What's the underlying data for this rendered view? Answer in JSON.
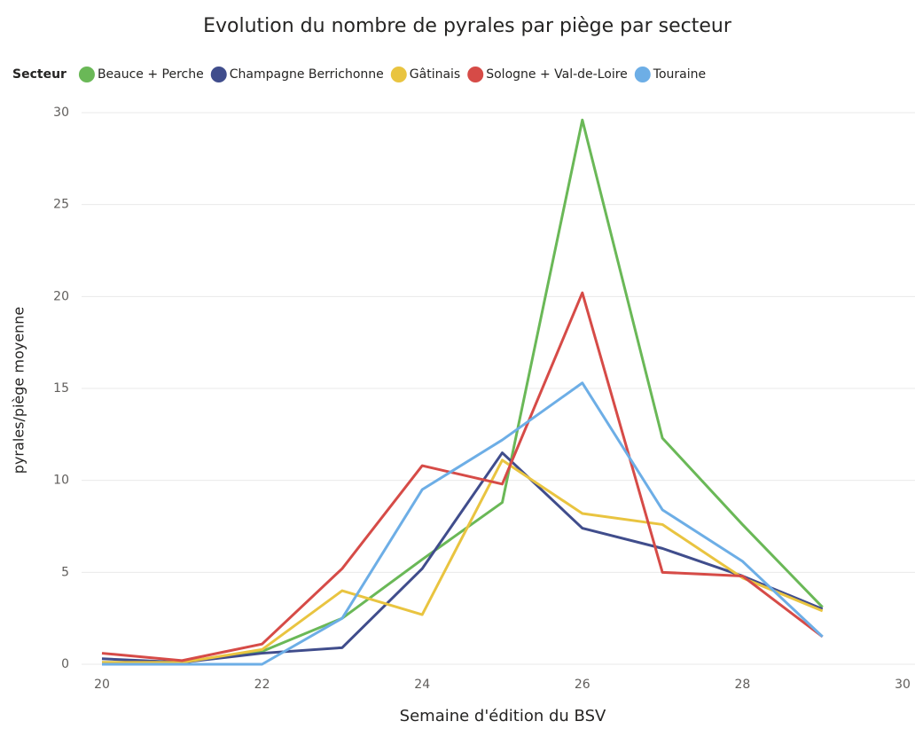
{
  "chart_data": {
    "type": "line",
    "title": "Evolution du nombre de pyrales par piège par secteur",
    "legend_title": "Secteur",
    "x_label": "Semaine d'édition du BSV",
    "y_label": "pyrales/piège moyenne",
    "x": [
      20,
      21,
      22,
      23,
      24,
      25,
      26,
      27,
      28,
      29
    ],
    "series": [
      {
        "name": "Beauce + Perche",
        "color": "#6ab857",
        "values": [
          0.1,
          0.1,
          0.7,
          2.5,
          5.7,
          8.8,
          29.6,
          12.3,
          7.6,
          3.1
        ]
      },
      {
        "name": "Champagne Berrichonne",
        "color": "#404d8c",
        "values": [
          0.3,
          0.1,
          0.6,
          0.9,
          5.2,
          11.5,
          7.4,
          6.3,
          4.8,
          3.0
        ]
      },
      {
        "name": "Gâtinais",
        "color": "#e9c440",
        "values": [
          0.1,
          0.1,
          0.8,
          4.0,
          2.7,
          11.1,
          8.2,
          7.6,
          4.7,
          2.9
        ]
      },
      {
        "name": "Sologne + Val-de-Loire",
        "color": "#d64b47",
        "values": [
          0.6,
          0.2,
          1.1,
          5.2,
          10.8,
          9.8,
          20.2,
          5.0,
          4.8,
          1.5
        ]
      },
      {
        "name": "Touraine",
        "color": "#6daee6",
        "values": [
          0,
          0,
          0,
          2.5,
          9.5,
          12.2,
          15.3,
          8.4,
          5.6,
          1.5
        ]
      }
    ],
    "xlim": [
      20,
      30
    ],
    "xticks": [
      20,
      22,
      24,
      26,
      28,
      30
    ],
    "ylim": [
      0,
      30
    ],
    "yticks": [
      0,
      5,
      10,
      15,
      20,
      25,
      30
    ],
    "grid": true,
    "legend": "top"
  }
}
